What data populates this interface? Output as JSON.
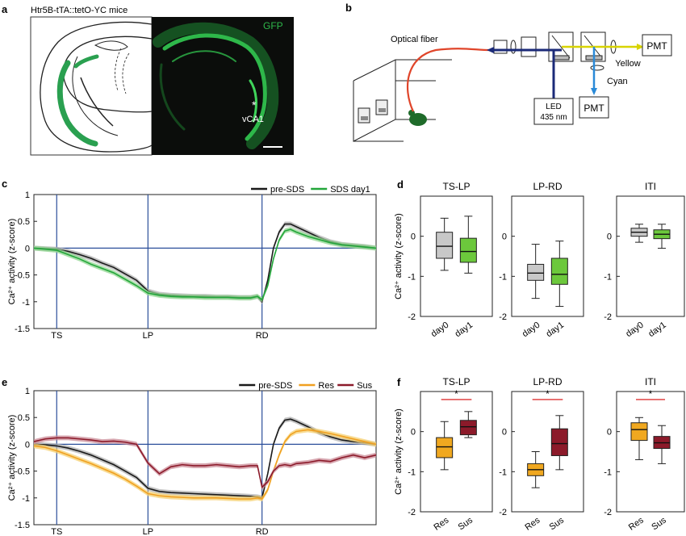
{
  "panel_letters": {
    "a": "a",
    "b": "b",
    "c": "c",
    "d": "d",
    "e": "e",
    "f": "f"
  },
  "panel_a": {
    "title": "Htr5B-tTA::tetO-YC mice",
    "gfp_label": "GFP",
    "region_label": "vCA1",
    "star": "*",
    "colors": {
      "gfp": "#2eb84a",
      "schematic_green": "#2aa050",
      "background": "#0b0d0b"
    }
  },
  "panel_b": {
    "fiber_label": "Optical fiber",
    "yellow_label": "Yellow",
    "cyan_label": "Cyan",
    "pmt_top": "PMT",
    "pmt_bottom": "PMT",
    "led_line1": "LED",
    "led_line2": "435 nm",
    "colors": {
      "fiber": "#e0452a",
      "excitation": "#1b2a78",
      "yellow": "#d8d400",
      "cyan": "#2a8ad8"
    }
  },
  "chart_data": [
    {
      "panel": "c",
      "type": "line",
      "ylabel": "Ca²⁺ activity (z-score)",
      "ylim": [
        -1.5,
        1
      ],
      "yticks": [
        -1.5,
        -1,
        -0.5,
        0,
        0.5,
        1
      ],
      "xlim": [
        0,
        300
      ],
      "event_ticks": [
        {
          "x": 20,
          "label": "TS"
        },
        {
          "x": 100,
          "label": "LP"
        },
        {
          "x": 200,
          "label": "RD"
        }
      ],
      "legend_position": "top-right",
      "series": [
        {
          "name": "pre-SDS",
          "color": "#1a1a1a",
          "band": "#b0b0b0",
          "x": [
            0,
            10,
            20,
            30,
            40,
            50,
            60,
            70,
            80,
            90,
            100,
            110,
            120,
            130,
            140,
            150,
            160,
            170,
            180,
            190,
            196,
            200,
            205,
            210,
            215,
            220,
            225,
            230,
            240,
            250,
            260,
            270,
            280,
            290,
            300
          ],
          "y": [
            0,
            -0.01,
            -0.02,
            -0.06,
            -0.12,
            -0.19,
            -0.28,
            -0.36,
            -0.48,
            -0.6,
            -0.8,
            -0.86,
            -0.88,
            -0.89,
            -0.9,
            -0.9,
            -0.91,
            -0.91,
            -0.92,
            -0.92,
            -0.9,
            -1.0,
            -0.6,
            0.0,
            0.3,
            0.45,
            0.45,
            0.4,
            0.3,
            0.2,
            0.12,
            0.07,
            0.05,
            0.03,
            0.0
          ]
        },
        {
          "name": "SDS day1",
          "color": "#22a63a",
          "band": "#8fd68f",
          "x": [
            0,
            10,
            20,
            30,
            40,
            50,
            60,
            70,
            80,
            90,
            100,
            110,
            120,
            130,
            140,
            150,
            160,
            170,
            180,
            190,
            196,
            200,
            205,
            210,
            215,
            220,
            225,
            230,
            240,
            250,
            260,
            270,
            280,
            290,
            300
          ],
          "y": [
            0,
            -0.02,
            -0.04,
            -0.12,
            -0.2,
            -0.3,
            -0.38,
            -0.46,
            -0.58,
            -0.7,
            -0.84,
            -0.88,
            -0.9,
            -0.91,
            -0.91,
            -0.92,
            -0.92,
            -0.92,
            -0.93,
            -0.93,
            -0.9,
            -0.96,
            -0.7,
            -0.2,
            0.15,
            0.32,
            0.35,
            0.3,
            0.22,
            0.16,
            0.1,
            0.06,
            0.04,
            0.02,
            0.0
          ]
        }
      ]
    },
    {
      "panel": "e",
      "type": "line",
      "ylabel": "Ca²⁺ activity (z-score)",
      "ylim": [
        -1.5,
        1
      ],
      "yticks": [
        -1.5,
        -1,
        -0.5,
        0,
        0.5,
        1
      ],
      "xlim": [
        0,
        300
      ],
      "event_ticks": [
        {
          "x": 20,
          "label": "TS"
        },
        {
          "x": 100,
          "label": "LP"
        },
        {
          "x": 200,
          "label": "RD"
        }
      ],
      "legend_position": "top-right",
      "series": [
        {
          "name": "pre-SDS",
          "color": "#1a1a1a",
          "band": "#b0b0b0",
          "x": [
            0,
            10,
            20,
            30,
            40,
            50,
            60,
            70,
            80,
            90,
            100,
            110,
            120,
            130,
            140,
            150,
            160,
            170,
            180,
            190,
            196,
            200,
            205,
            210,
            215,
            220,
            225,
            230,
            240,
            250,
            260,
            270,
            280,
            290,
            300
          ],
          "y": [
            0,
            -0.01,
            -0.03,
            -0.07,
            -0.13,
            -0.2,
            -0.29,
            -0.38,
            -0.5,
            -0.62,
            -0.82,
            -0.88,
            -0.9,
            -0.91,
            -0.92,
            -0.93,
            -0.94,
            -0.95,
            -0.96,
            -0.97,
            -0.98,
            -1.0,
            -0.55,
            0.0,
            0.3,
            0.45,
            0.47,
            0.43,
            0.33,
            0.22,
            0.14,
            0.08,
            0.05,
            0.03,
            0.0
          ]
        },
        {
          "name": "Res",
          "color": "#f0a020",
          "band": "#f5d070",
          "x": [
            0,
            10,
            20,
            30,
            40,
            50,
            60,
            70,
            80,
            90,
            100,
            110,
            120,
            130,
            140,
            150,
            160,
            170,
            180,
            190,
            196,
            200,
            205,
            210,
            215,
            220,
            225,
            230,
            240,
            250,
            260,
            270,
            280,
            290,
            300
          ],
          "y": [
            -0.03,
            -0.06,
            -0.12,
            -0.2,
            -0.28,
            -0.36,
            -0.45,
            -0.54,
            -0.65,
            -0.78,
            -0.92,
            -0.96,
            -0.98,
            -0.99,
            -1.0,
            -1.0,
            -1.0,
            -1.01,
            -1.02,
            -1.02,
            -1.0,
            -1.02,
            -0.85,
            -0.5,
            -0.2,
            0.05,
            0.18,
            0.24,
            0.27,
            0.24,
            0.2,
            0.15,
            0.1,
            0.05,
            0.0
          ]
        },
        {
          "name": "Sus",
          "color": "#8c1a2a",
          "band": "#c98a95",
          "x": [
            0,
            10,
            20,
            30,
            40,
            50,
            60,
            70,
            80,
            90,
            100,
            110,
            120,
            130,
            140,
            150,
            160,
            170,
            180,
            190,
            196,
            200,
            205,
            210,
            215,
            220,
            225,
            230,
            240,
            250,
            260,
            270,
            280,
            290,
            300
          ],
          "y": [
            0.05,
            0.1,
            0.12,
            0.12,
            0.1,
            0.08,
            0.05,
            0.06,
            0.04,
            0.0,
            -0.35,
            -0.55,
            -0.42,
            -0.38,
            -0.4,
            -0.4,
            -0.38,
            -0.4,
            -0.42,
            -0.4,
            -0.4,
            -0.8,
            -0.7,
            -0.5,
            -0.4,
            -0.38,
            -0.4,
            -0.36,
            -0.34,
            -0.3,
            -0.32,
            -0.25,
            -0.2,
            -0.25,
            -0.2
          ]
        }
      ]
    },
    {
      "panel": "d",
      "type": "box",
      "ylabel": "Ca²⁺ activity (z-score)",
      "ylim": [
        -2,
        1
      ],
      "yticks": [
        -2,
        -1,
        0
      ],
      "categories": [
        "day0",
        "day1"
      ],
      "subplots": [
        {
          "title": "TS-LP",
          "boxes": [
            {
              "category": "day0",
              "color": "#c8c8c8",
              "whisker_low": -0.85,
              "q1": -0.55,
              "median": -0.25,
              "q3": 0.1,
              "whisker_high": 0.45
            },
            {
              "category": "day1",
              "color": "#6cc83c",
              "whisker_low": -0.92,
              "q1": -0.65,
              "median": -0.38,
              "q3": -0.05,
              "whisker_high": 0.5
            }
          ]
        },
        {
          "title": "LP-RD",
          "boxes": [
            {
              "category": "day0",
              "color": "#c8c8c8",
              "whisker_low": -1.55,
              "q1": -1.1,
              "median": -0.92,
              "q3": -0.7,
              "whisker_high": -0.2
            },
            {
              "category": "day1",
              "color": "#6cc83c",
              "whisker_low": -1.75,
              "q1": -1.2,
              "median": -0.95,
              "q3": -0.55,
              "whisker_high": -0.12
            }
          ]
        },
        {
          "title": "ITI",
          "boxes": [
            {
              "category": "day0",
              "color": "#c8c8c8",
              "whisker_low": -0.15,
              "q1": 0.0,
              "median": 0.1,
              "q3": 0.2,
              "whisker_high": 0.3
            },
            {
              "category": "day1",
              "color": "#6cc83c",
              "whisker_low": -0.3,
              "q1": -0.06,
              "median": 0.05,
              "q3": 0.16,
              "whisker_high": 0.3
            }
          ]
        }
      ]
    },
    {
      "panel": "f",
      "type": "box",
      "ylabel": "Ca²⁺ activity (z-score)",
      "ylim": [
        -2,
        1
      ],
      "yticks": [
        -2,
        -1,
        0
      ],
      "categories": [
        "Res",
        "Sus"
      ],
      "significance": "*",
      "subplots": [
        {
          "title": "TS-LP",
          "boxes": [
            {
              "category": "Res",
              "color": "#f0a820",
              "whisker_low": -0.95,
              "q1": -0.65,
              "median": -0.38,
              "q3": -0.15,
              "whisker_high": 0.25
            },
            {
              "category": "Sus",
              "color": "#8c1a2a",
              "whisker_low": -0.15,
              "q1": -0.08,
              "median": 0.12,
              "q3": 0.28,
              "whisker_high": 0.5
            }
          ]
        },
        {
          "title": "LP-RD",
          "boxes": [
            {
              "category": "Res",
              "color": "#f0a820",
              "whisker_low": -1.4,
              "q1": -1.1,
              "median": -0.95,
              "q3": -0.8,
              "whisker_high": -0.5
            },
            {
              "category": "Sus",
              "color": "#8c1a2a",
              "whisker_low": -0.95,
              "q1": -0.6,
              "median": -0.3,
              "q3": 0.07,
              "whisker_high": 0.4
            }
          ]
        },
        {
          "title": "ITI",
          "boxes": [
            {
              "category": "Res",
              "color": "#f0a820",
              "whisker_low": -0.7,
              "q1": -0.22,
              "median": 0.05,
              "q3": 0.22,
              "whisker_high": 0.35
            },
            {
              "category": "Sus",
              "color": "#8c1a2a",
              "whisker_low": -0.8,
              "q1": -0.42,
              "median": -0.28,
              "q3": -0.12,
              "whisker_high": 0.15
            }
          ]
        }
      ]
    }
  ]
}
